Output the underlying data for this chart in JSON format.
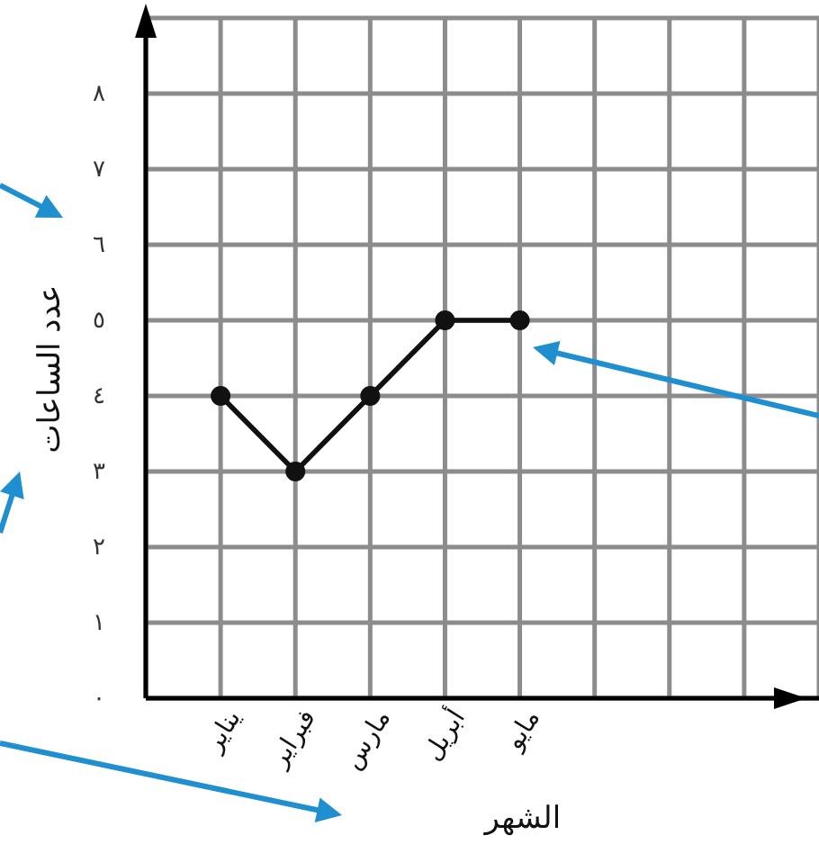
{
  "chart_data": {
    "type": "line",
    "xlabel": "الشهر",
    "ylabel": "عدد الساعات",
    "categories": [
      "يناير",
      "فبراير",
      "مارس",
      "أبريل",
      "مايو"
    ],
    "values": [
      4,
      3,
      4,
      5,
      5
    ],
    "color": "#111111",
    "ylim": [
      0,
      9
    ],
    "yticks": [
      {
        "value": 0,
        "label": "٠"
      },
      {
        "value": 1,
        "label": "١"
      },
      {
        "value": 2,
        "label": "٢"
      },
      {
        "value": 3,
        "label": "٣"
      },
      {
        "value": 4,
        "label": "٤"
      },
      {
        "value": 5,
        "label": "٥"
      },
      {
        "value": 6,
        "label": "٦"
      },
      {
        "value": 7,
        "label": "٧"
      },
      {
        "value": 8,
        "label": "٨"
      },
      {
        "value": 9,
        "label": null
      }
    ],
    "grid": true,
    "marker": "circle",
    "line_style": "solid"
  }
}
